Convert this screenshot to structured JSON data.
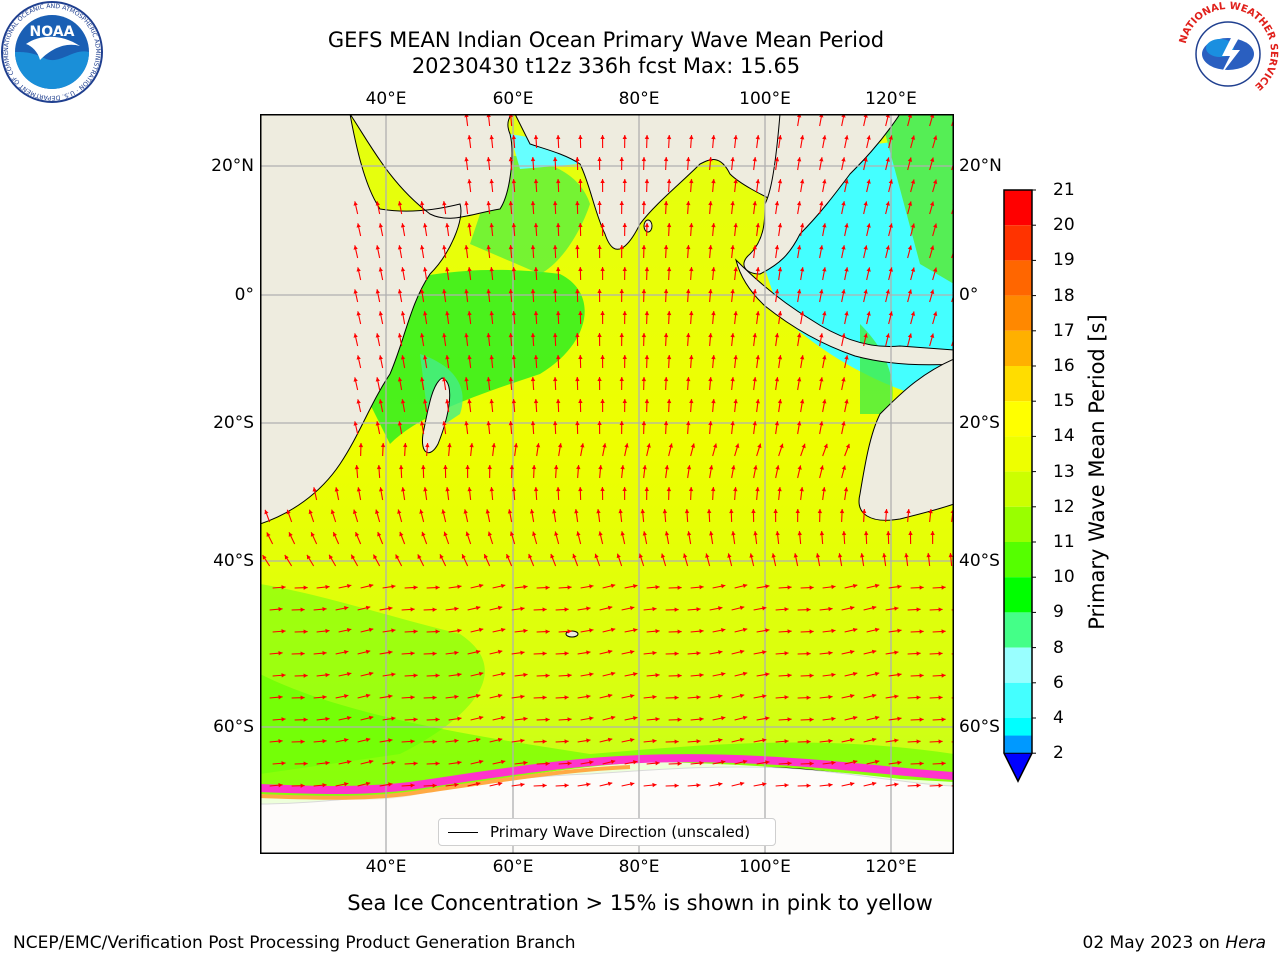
{
  "header": {
    "title_line1": "GEFS MEAN Indian Ocean Primary Wave Mean Period",
    "title_line2": "20230430 t12z 336h fcst   Max: 15.65"
  },
  "map": {
    "lon_ticks": [
      "40°E",
      "60°E",
      "80°E",
      "100°E",
      "120°E"
    ],
    "lat_ticks": [
      "20°N",
      "0°",
      "20°S",
      "40°S",
      "60°S"
    ],
    "lon_range": [
      20,
      130
    ],
    "lat_range": [
      -73,
      28
    ],
    "legend_label": "Primary Wave Direction (unscaled)",
    "land_color": "#eeecdf",
    "arrow_color": "#ff0000"
  },
  "colorbar": {
    "label": "Primary Wave Mean Period [s]",
    "ticks": [
      "21",
      "20",
      "19",
      "18",
      "17",
      "16",
      "15",
      "14",
      "13",
      "12",
      "11",
      "10",
      "9",
      "8",
      "6",
      "4",
      "2"
    ],
    "colors": [
      "#ff0000",
      "#ff3300",
      "#ff6600",
      "#ff8800",
      "#ffb000",
      "#ffdd00",
      "#ffff00",
      "#eeff00",
      "#ccff00",
      "#99ff00",
      "#55ff00",
      "#00ff00",
      "#44ff88",
      "#99ffff",
      "#44ffff",
      "#00ffff",
      "#0099ff"
    ],
    "extend_color": "#0000ff"
  },
  "note": "Sea Ice Concentration > 15% is shown in pink to yellow",
  "footer": {
    "left": "NCEP/EMC/Verification Post Processing Product Generation Branch",
    "right_date": "02 May 2023 on",
    "right_host": "Hera"
  },
  "logos": {
    "noaa_text": "NOAA",
    "noaa_ring": "NATIONAL OCEANIC AND ATMOSPHERIC ADMINISTRATION · U.S. DEPARTMENT OF COMMERCE",
    "nws_ring": "NATIONAL WEATHER SERVICE"
  }
}
